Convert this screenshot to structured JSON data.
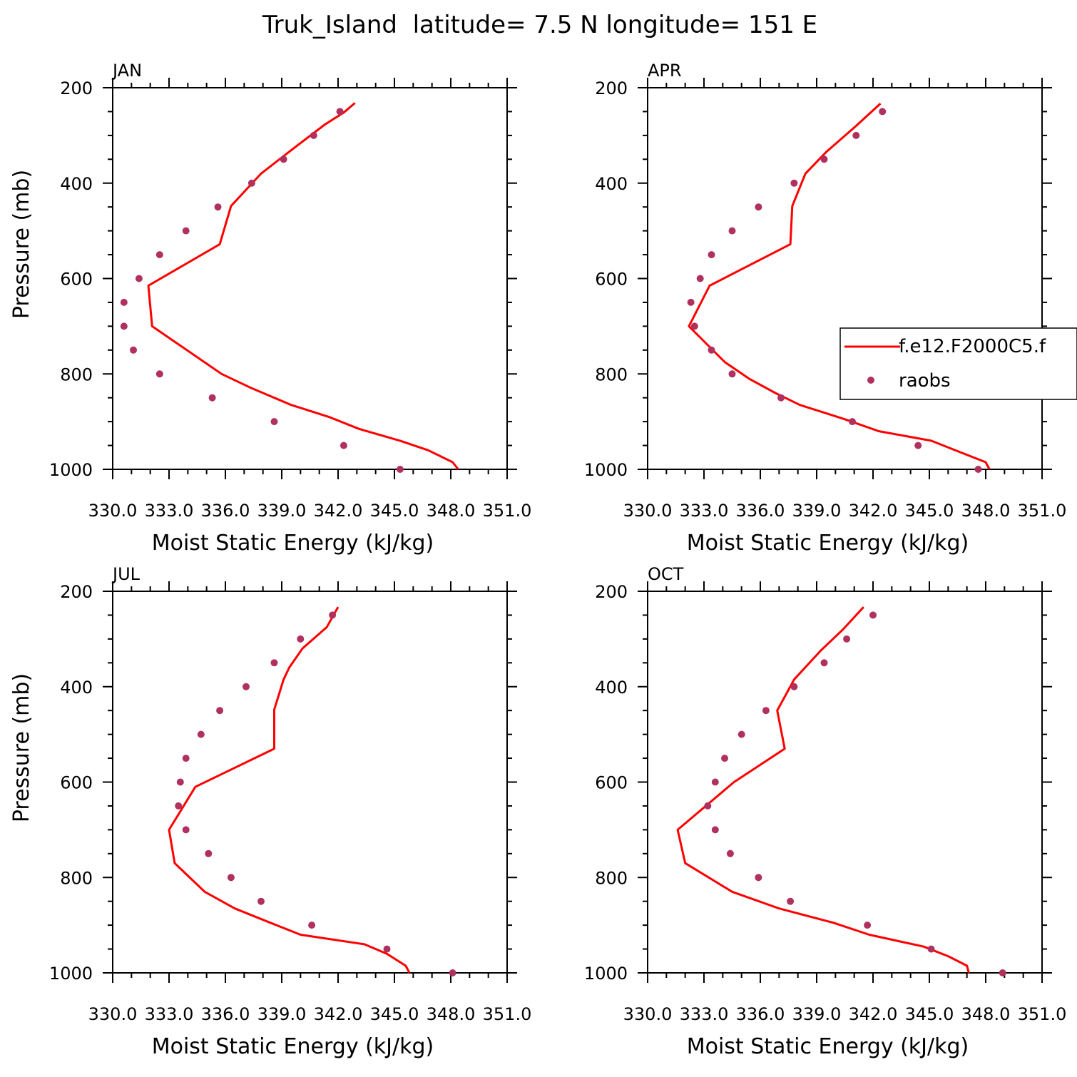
{
  "figure_title": "Truk_Island  latitude= 7.5 N longitude= 151 E",
  "colors": {
    "model": "#ff0000",
    "obs": "#b0305f",
    "axis": "#000000"
  },
  "legend": {
    "model_label": "f.e12.F2000C5.f",
    "obs_label": "raobs",
    "placement": "right"
  },
  "chart_data": [
    {
      "type": "line",
      "panel": "JAN",
      "xlabel": "Moist Static Energy (kJ/kg)",
      "ylabel": "Pressure (mb)",
      "xlim": [
        330.0,
        351.0
      ],
      "ylim": [
        1000,
        200
      ],
      "x_ticks": [
        "330.0",
        "333.0",
        "336.0",
        "339.0",
        "342.0",
        "345.0",
        "348.0",
        "351.0"
      ],
      "y_ticks": [
        "200",
        "400",
        "600",
        "800",
        "1000"
      ],
      "series": [
        {
          "kind": "line",
          "points": [
            [
              348.4,
              1000
            ],
            [
              348.1,
              985
            ],
            [
              346.8,
              960
            ],
            [
              345.3,
              940
            ],
            [
              343.1,
              915
            ],
            [
              341.5,
              890
            ],
            [
              339.5,
              865
            ],
            [
              337.4,
              830
            ],
            [
              335.8,
              800
            ],
            [
              334.5,
              765
            ],
            [
              332.1,
              700
            ],
            [
              331.9,
              615
            ],
            [
              335.7,
              528
            ],
            [
              336.3,
              448
            ],
            [
              337.9,
              380
            ],
            [
              339.8,
              322
            ],
            [
              341.3,
              277
            ],
            [
              342.3,
              252
            ],
            [
              342.9,
              232
            ]
          ]
        },
        {
          "kind": "scatter",
          "points": [
            [
              345.3,
              1000
            ],
            [
              342.3,
              950
            ],
            [
              338.6,
              900
            ],
            [
              335.3,
              850
            ],
            [
              332.5,
              800
            ],
            [
              331.1,
              750
            ],
            [
              330.6,
              700
            ],
            [
              330.6,
              650
            ],
            [
              331.4,
              600
            ],
            [
              332.5,
              550
            ],
            [
              333.9,
              500
            ],
            [
              335.6,
              450
            ],
            [
              337.4,
              400
            ],
            [
              339.1,
              350
            ],
            [
              340.7,
              300
            ],
            [
              342.1,
              250
            ]
          ]
        }
      ]
    },
    {
      "type": "line",
      "panel": "APR",
      "xlabel": "Moist Static Energy (kJ/kg)",
      "ylabel": "",
      "xlim": [
        330.0,
        351.0
      ],
      "ylim": [
        1000,
        200
      ],
      "x_ticks": [
        "330.0",
        "333.0",
        "336.0",
        "339.0",
        "342.0",
        "345.0",
        "348.0",
        "351.0"
      ],
      "y_ticks": [
        "200",
        "400",
        "600",
        "800",
        "1000"
      ],
      "series": [
        {
          "kind": "line",
          "points": [
            [
              348.2,
              1000
            ],
            [
              348.0,
              985
            ],
            [
              346.7,
              965
            ],
            [
              345.1,
              940
            ],
            [
              342.3,
              920
            ],
            [
              340.5,
              895
            ],
            [
              338.1,
              865
            ],
            [
              336.8,
              840
            ],
            [
              335.4,
              810
            ],
            [
              334.1,
              775
            ],
            [
              332.2,
              700
            ],
            [
              333.3,
              615
            ],
            [
              337.6,
              528
            ],
            [
              337.7,
              448
            ],
            [
              338.4,
              380
            ],
            [
              339.5,
              335
            ],
            [
              341.1,
              280
            ],
            [
              342.4,
              233
            ]
          ]
        },
        {
          "kind": "scatter",
          "points": [
            [
              347.6,
              1000
            ],
            [
              344.4,
              950
            ],
            [
              340.9,
              900
            ],
            [
              337.1,
              850
            ],
            [
              334.5,
              800
            ],
            [
              333.4,
              750
            ],
            [
              332.5,
              700
            ],
            [
              332.3,
              650
            ],
            [
              332.8,
              600
            ],
            [
              333.4,
              550
            ],
            [
              334.5,
              500
            ],
            [
              335.9,
              450
            ],
            [
              337.8,
              400
            ],
            [
              339.4,
              350
            ],
            [
              341.1,
              300
            ],
            [
              342.5,
              250
            ]
          ]
        }
      ]
    },
    {
      "type": "line",
      "panel": "JUL",
      "xlabel": "Moist Static Energy (kJ/kg)",
      "ylabel": "Pressure (mb)",
      "xlim": [
        330.0,
        351.0
      ],
      "ylim": [
        1000,
        200
      ],
      "x_ticks": [
        "330.0",
        "333.0",
        "336.0",
        "339.0",
        "342.0",
        "345.0",
        "348.0",
        "351.0"
      ],
      "y_ticks": [
        "200",
        "400",
        "600",
        "800",
        "1000"
      ],
      "series": [
        {
          "kind": "line",
          "points": [
            [
              345.8,
              1000
            ],
            [
              345.6,
              985
            ],
            [
              344.6,
              960
            ],
            [
              343.4,
              940
            ],
            [
              340.0,
              920
            ],
            [
              338.4,
              895
            ],
            [
              336.5,
              865
            ],
            [
              334.9,
              830
            ],
            [
              333.3,
              770
            ],
            [
              333.0,
              700
            ],
            [
              334.4,
              610
            ],
            [
              338.6,
              530
            ],
            [
              338.6,
              448
            ],
            [
              339.1,
              385
            ],
            [
              339.4,
              360
            ],
            [
              340.1,
              320
            ],
            [
              341.4,
              275
            ],
            [
              342.0,
              233
            ]
          ]
        },
        {
          "kind": "scatter",
          "points": [
            [
              348.1,
              1000
            ],
            [
              344.6,
              950
            ],
            [
              340.6,
              900
            ],
            [
              337.9,
              850
            ],
            [
              336.3,
              800
            ],
            [
              335.1,
              750
            ],
            [
              333.9,
              700
            ],
            [
              333.5,
              650
            ],
            [
              333.6,
              600
            ],
            [
              333.9,
              550
            ],
            [
              334.7,
              500
            ],
            [
              335.7,
              450
            ],
            [
              337.1,
              400
            ],
            [
              338.6,
              350
            ],
            [
              340.0,
              300
            ],
            [
              341.7,
              250
            ]
          ]
        }
      ]
    },
    {
      "type": "line",
      "panel": "OCT",
      "xlabel": "Moist Static Energy (kJ/kg)",
      "ylabel": "",
      "xlim": [
        330.0,
        351.0
      ],
      "ylim": [
        1000,
        200
      ],
      "x_ticks": [
        "330.0",
        "333.0",
        "336.0",
        "339.0",
        "342.0",
        "345.0",
        "348.0",
        "351.0"
      ],
      "y_ticks": [
        "200",
        "400",
        "600",
        "800",
        "1000"
      ],
      "series": [
        {
          "kind": "line",
          "points": [
            [
              347.1,
              1000
            ],
            [
              347.0,
              985
            ],
            [
              346.0,
              965
            ],
            [
              344.7,
              945
            ],
            [
              341.8,
              920
            ],
            [
              339.9,
              895
            ],
            [
              337.0,
              865
            ],
            [
              334.5,
              830
            ],
            [
              332.0,
              770
            ],
            [
              331.6,
              700
            ],
            [
              334.6,
              600
            ],
            [
              337.3,
              530
            ],
            [
              336.9,
              450
            ],
            [
              337.8,
              385
            ],
            [
              339.2,
              325
            ],
            [
              340.4,
              280
            ],
            [
              341.5,
              233
            ]
          ]
        },
        {
          "kind": "scatter",
          "points": [
            [
              348.9,
              1000
            ],
            [
              345.1,
              950
            ],
            [
              341.7,
              900
            ],
            [
              337.6,
              850
            ],
            [
              335.9,
              800
            ],
            [
              334.4,
              750
            ],
            [
              333.6,
              700
            ],
            [
              333.2,
              650
            ],
            [
              333.6,
              600
            ],
            [
              334.1,
              550
            ],
            [
              335.0,
              500
            ],
            [
              336.3,
              450
            ],
            [
              337.8,
              400
            ],
            [
              339.4,
              350
            ],
            [
              340.6,
              300
            ],
            [
              342.0,
              250
            ]
          ]
        }
      ]
    }
  ]
}
